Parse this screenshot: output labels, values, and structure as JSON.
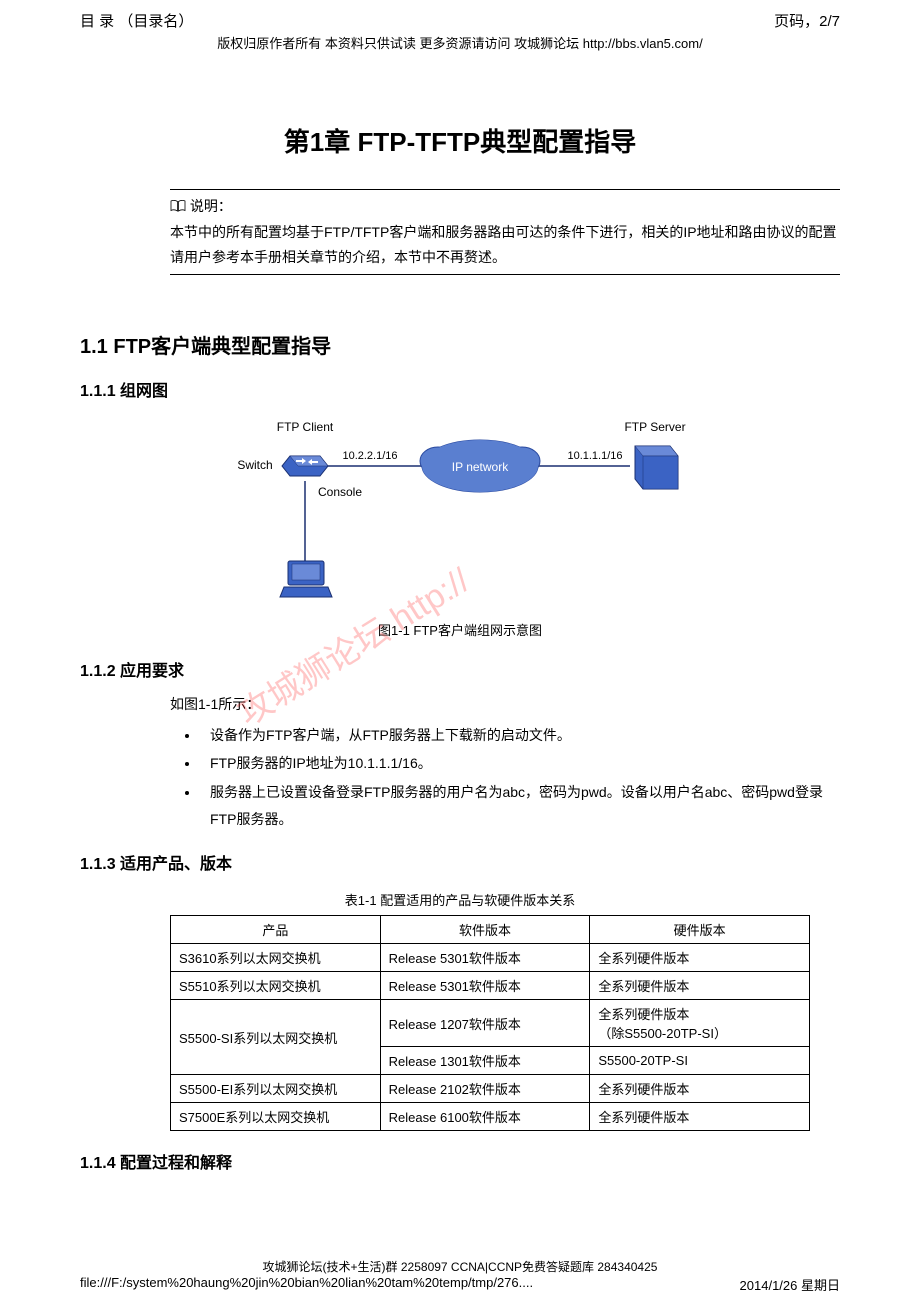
{
  "header": {
    "toc_left": "目 录 （目录名）",
    "page_right": "页码，2/7",
    "copyright": "版权归原作者所有 本资料只供试读 更多资源请访问 攻城狮论坛 http://bbs.vlan5.com/"
  },
  "chapter_title": "第1章  FTP-TFTP典型配置指导",
  "note": {
    "label": "说明：",
    "text": "本节中的所有配置均基于FTP/TFTP客户端和服务器路由可达的条件下进行，相关的IP地址和路由协议的配置请用户参考本手册相关章节的介绍，本节中不再赘述。"
  },
  "section_1_1": "1.1  FTP客户端典型配置指导",
  "section_1_1_1": "1.1.1  组网图",
  "diagram": {
    "labels": {
      "ftp_client": "FTP Client",
      "ftp_server": "FTP Server",
      "switch": "Switch",
      "console": "Console",
      "ip_network": "IP network",
      "ip_left": "10.2.2.1/16",
      "ip_right": "10.1.1.1/16"
    },
    "caption": "图1-1 FTP客户端组网示意图",
    "colors": {
      "device_fill": "#3b63c4",
      "device_stroke": "#1a2f70",
      "cloud_fill": "#5a7fd0",
      "cloud_stroke": "#2a4aa0",
      "cloud_text": "#ffffff",
      "link": "#1a2f70",
      "label": "#000000"
    }
  },
  "section_1_1_2": "1.1.2  应用要求",
  "req": {
    "intro": "如图1-1所示：",
    "items": [
      "设备作为FTP客户端，从FTP服务器上下载新的启动文件。",
      "FTP服务器的IP地址为10.1.1.1/16。",
      "服务器上已设置设备登录FTP服务器的用户名为abc，密码为pwd。设备以用户名abc、密码pwd登录FTP服务器。"
    ]
  },
  "section_1_1_3": "1.1.3  适用产品、版本",
  "table": {
    "caption": "表1-1 配置适用的产品与软硬件版本关系",
    "columns": [
      "产品",
      "软件版本",
      "硬件版本"
    ],
    "col_widths": [
      "210px",
      "210px",
      "220px"
    ],
    "rows": [
      {
        "product": "S3610系列以太网交换机",
        "sw": "Release 5301软件版本",
        "hw": "全系列硬件版本"
      },
      {
        "product": "S5510系列以太网交换机",
        "sw": "Release 5301软件版本",
        "hw": "全系列硬件版本"
      },
      {
        "product": "S5500-SI系列以太网交换机",
        "rowspan": 2,
        "sw": "Release 1207软件版本",
        "hw": "全系列硬件版本\n（除S5500-20TP-SI）"
      },
      {
        "sw": "Release 1301软件版本",
        "hw": "S5500-20TP-SI"
      },
      {
        "product": "S5500-EI系列以太网交换机",
        "sw": "Release 2102软件版本",
        "hw": "全系列硬件版本"
      },
      {
        "product": "S7500E系列以太网交换机",
        "sw": "Release 6100软件版本",
        "hw": "全系列硬件版本"
      }
    ]
  },
  "section_1_1_4": "1.1.4  配置过程和解释",
  "watermark": "攻城狮论坛 http://",
  "footer": {
    "line1": "攻城狮论坛(技术+生活)群 2258097 CCNA|CCNP免费答疑题库 284340425",
    "path": "file:///F:/system%20haung%20jin%20bian%20lian%20tam%20temp/tmp/276....",
    "date": "2014/1/26 星期日"
  }
}
